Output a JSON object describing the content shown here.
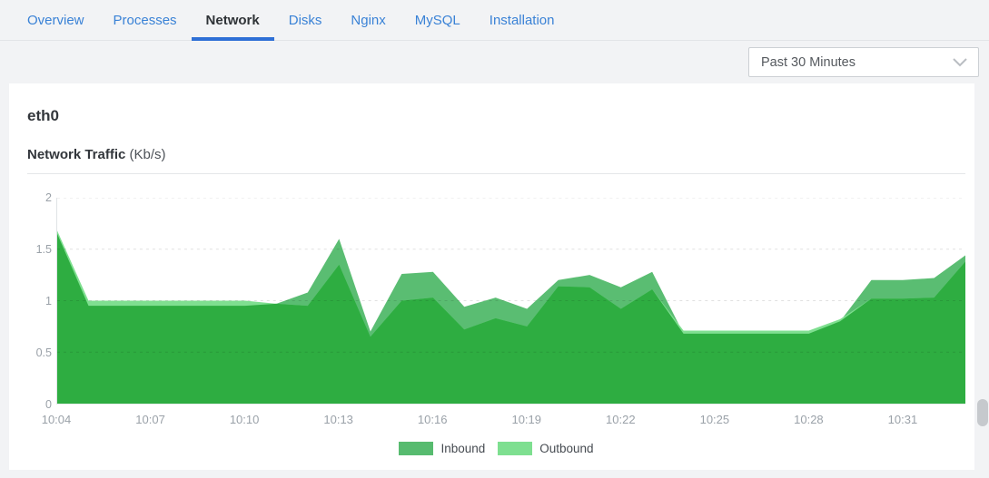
{
  "tabs": [
    {
      "label": "Overview",
      "active": false
    },
    {
      "label": "Processes",
      "active": false
    },
    {
      "label": "Network",
      "active": true
    },
    {
      "label": "Disks",
      "active": false
    },
    {
      "label": "Nginx",
      "active": false
    },
    {
      "label": "MySQL",
      "active": false
    },
    {
      "label": "Installation",
      "active": false
    }
  ],
  "filter": {
    "selected": "Past 30 Minutes",
    "chevron_icon": "chevron-down"
  },
  "card": {
    "title": "eth0",
    "chart_title": "Network Traffic",
    "chart_unit": "(Kb/s)"
  },
  "legend": {
    "items": [
      {
        "label": "Inbound",
        "color": "#57bb6f"
      },
      {
        "label": "Outbound",
        "color": "#7edf90"
      }
    ]
  },
  "chart_data": {
    "type": "area",
    "title": "Network Traffic (Kb/s)",
    "x": [
      "10:04",
      "10:05",
      "10:06",
      "10:07",
      "10:08",
      "10:09",
      "10:10",
      "10:11",
      "10:12",
      "10:13",
      "10:14",
      "10:15",
      "10:16",
      "10:17",
      "10:18",
      "10:19",
      "10:20",
      "10:21",
      "10:22",
      "10:23",
      "10:24",
      "10:25",
      "10:26",
      "10:27",
      "10:28",
      "10:29",
      "10:30",
      "10:31",
      "10:32",
      "10:33"
    ],
    "series": [
      {
        "name": "Inbound",
        "color": "#5abd72",
        "values": [
          1.65,
          0.95,
          0.95,
          0.95,
          0.95,
          0.95,
          0.95,
          0.97,
          1.08,
          1.6,
          0.7,
          1.26,
          1.28,
          0.94,
          1.03,
          0.92,
          1.2,
          1.25,
          1.13,
          1.28,
          0.68,
          0.68,
          0.68,
          0.68,
          0.68,
          0.8,
          1.2,
          1.2,
          1.22,
          1.44
        ]
      },
      {
        "name": "Outbound",
        "color": "#7fdf90",
        "values": [
          1.68,
          1.0,
          1.0,
          1.0,
          1.0,
          1.0,
          1.0,
          0.97,
          0.95,
          1.35,
          0.65,
          1.0,
          1.03,
          0.72,
          0.83,
          0.75,
          1.14,
          1.13,
          0.92,
          1.11,
          0.71,
          0.71,
          0.71,
          0.71,
          0.71,
          0.82,
          1.02,
          1.02,
          1.03,
          1.38
        ]
      }
    ],
    "overlap_color": "#2ead41",
    "ylim": [
      0,
      2
    ],
    "yticks": [
      0,
      0.5,
      1,
      1.5,
      2
    ],
    "xtick_labels": [
      "10:04",
      "10:07",
      "10:10",
      "10:13",
      "10:16",
      "10:19",
      "10:22",
      "10:25",
      "10:28",
      "10:31"
    ],
    "xtick_every": 3,
    "legend_position": "bottom",
    "grid": "horizontal-dashed"
  }
}
